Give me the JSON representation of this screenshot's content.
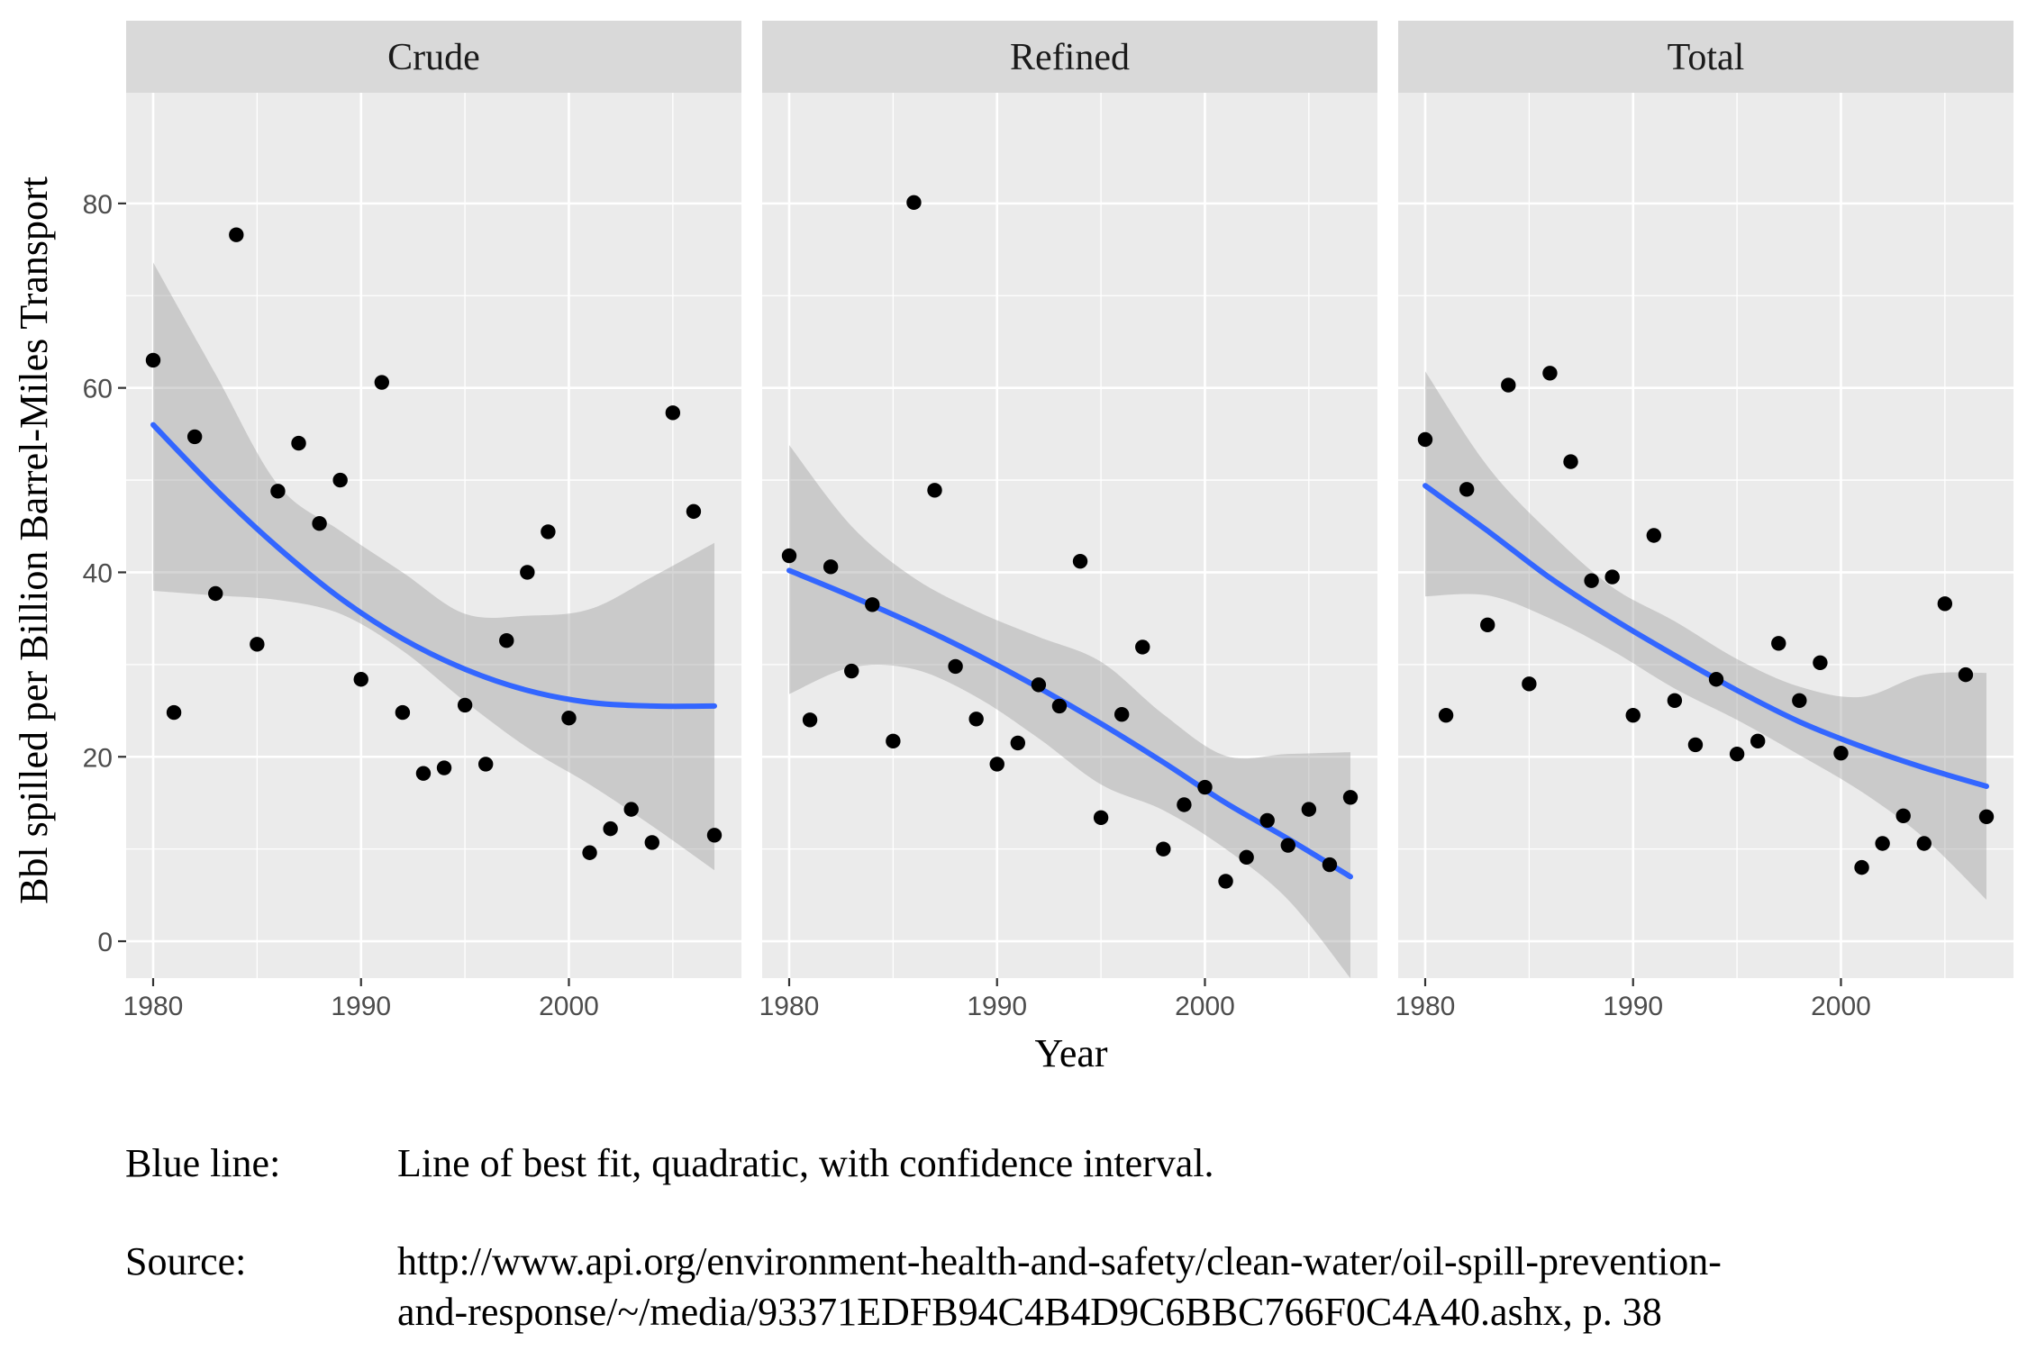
{
  "chart_data": {
    "type": "scatter",
    "subtype": "faceted scatter with quadratic fit and confidence band",
    "xlabel": "Year",
    "ylabel": "Bbl spilled per Billion Barrel-Miles Transport",
    "xlim": [
      1978.7,
      2008.3
    ],
    "ylim": [
      -4,
      92
    ],
    "x_ticks": [
      1980,
      1990,
      2000
    ],
    "y_ticks": [
      0,
      20,
      40,
      60,
      80
    ],
    "grid": true,
    "fit_color": "#3366ff",
    "band_color": "#999999",
    "point_color": "#000000",
    "panel_background": "#ebebeb",
    "strip_background": "#d9d9d9",
    "facets": [
      {
        "name": "Crude",
        "x": [
          1980,
          1981,
          1982,
          1983,
          1984,
          1985,
          1986,
          1987,
          1988,
          1989,
          1990,
          1991,
          1992,
          1993,
          1994,
          1995,
          1996,
          1997,
          1998,
          1999,
          2000,
          2001,
          2002,
          2003,
          2004,
          2005,
          2006,
          2007
        ],
        "y": [
          63.0,
          24.8,
          54.7,
          37.7,
          76.6,
          32.2,
          48.8,
          54.0,
          45.3,
          50.0,
          28.4,
          60.6,
          24.8,
          18.2,
          18.8,
          25.6,
          19.2,
          32.6,
          40.0,
          44.4,
          24.2,
          9.6,
          12.2,
          14.3,
          10.7,
          57.3,
          46.6,
          11.5
        ],
        "fit": {
          "x": [
            1980,
            1983,
            1986,
            1989,
            1992,
            1995,
            1998,
            2001,
            2004,
            2007
          ],
          "y": [
            56.0,
            49.0,
            42.7,
            37.2,
            32.8,
            29.5,
            27.2,
            25.9,
            25.5,
            25.5
          ],
          "lower": [
            38.0,
            37.5,
            37.0,
            35.5,
            31.5,
            26.0,
            21.0,
            17.0,
            12.5,
            7.7
          ],
          "upper": [
            73.6,
            61.5,
            49.5,
            44.5,
            40.0,
            35.5,
            35.3,
            36.0,
            39.5,
            43.2
          ]
        }
      },
      {
        "name": "Refined",
        "x": [
          1980,
          1981,
          1982,
          1983,
          1984,
          1985,
          1986,
          1987,
          1988,
          1989,
          1990,
          1991,
          1992,
          1993,
          1994,
          1995,
          1996,
          1997,
          1998,
          1999,
          2000,
          2001,
          2002,
          2003,
          2004,
          2005,
          2006,
          2007
        ],
        "y": [
          41.8,
          24.0,
          40.6,
          29.3,
          36.5,
          21.7,
          80.1,
          48.9,
          29.8,
          24.1,
          19.2,
          21.5,
          27.8,
          25.5,
          41.2,
          13.4,
          24.6,
          31.9,
          10.0,
          14.8,
          16.7,
          6.5,
          9.1,
          13.1,
          10.4,
          14.3,
          8.3,
          15.6
        ],
        "fit": {
          "x": [
            1980,
            1983,
            1986,
            1989,
            1992,
            1995,
            1998,
            2001,
            2004,
            2007
          ],
          "y": [
            40.2,
            37.4,
            34.4,
            31.1,
            27.5,
            23.6,
            19.4,
            15.0,
            11.1,
            7.0
          ],
          "lower": [
            26.8,
            29.7,
            29.5,
            26.5,
            22.0,
            17.0,
            14.2,
            10.0,
            4.5,
            -4.0
          ],
          "upper": [
            53.8,
            45.0,
            39.4,
            35.8,
            33.0,
            30.3,
            24.6,
            20.1,
            20.3,
            20.5
          ]
        }
      },
      {
        "name": "Total",
        "x": [
          1980,
          1981,
          1982,
          1983,
          1984,
          1985,
          1986,
          1987,
          1988,
          1989,
          1990,
          1991,
          1992,
          1993,
          1994,
          1995,
          1996,
          1997,
          1998,
          1999,
          2000,
          2001,
          2002,
          2003,
          2004,
          2005,
          2006,
          2007
        ],
        "y": [
          54.4,
          24.5,
          49.0,
          34.3,
          60.3,
          27.9,
          61.6,
          52.0,
          39.1,
          39.5,
          24.5,
          44.0,
          26.1,
          21.3,
          28.4,
          20.3,
          21.7,
          32.3,
          26.1,
          30.2,
          20.4,
          8.0,
          10.6,
          13.6,
          10.6,
          36.6,
          28.9,
          13.5
        ],
        "fit": {
          "x": [
            1980,
            1983,
            1986,
            1989,
            1992,
            1995,
            1998,
            2001,
            2004,
            2007
          ],
          "y": [
            49.4,
            44.5,
            39.4,
            35.0,
            31.0,
            27.2,
            23.8,
            21.1,
            18.8,
            16.8
          ],
          "lower": [
            37.4,
            37.5,
            35.0,
            31.5,
            27.4,
            24.0,
            20.2,
            16.2,
            11.2,
            4.5
          ],
          "upper": [
            61.8,
            51.5,
            44.3,
            38.4,
            34.7,
            30.6,
            27.6,
            26.5,
            28.9,
            29.1
          ]
        }
      }
    ]
  },
  "caption": {
    "blue_line_label": "Blue line:",
    "blue_line_text": "Line of best fit, quadratic, with confidence interval.",
    "source_label": "Source:",
    "source_line1": "http://www.api.org/environment-health-and-safety/clean-water/oil-spill-prevention-",
    "source_line2": "and-response/~/media/93371EDFB94C4B4D9C6BBC766F0C4A40.ashx, p. 38"
  }
}
